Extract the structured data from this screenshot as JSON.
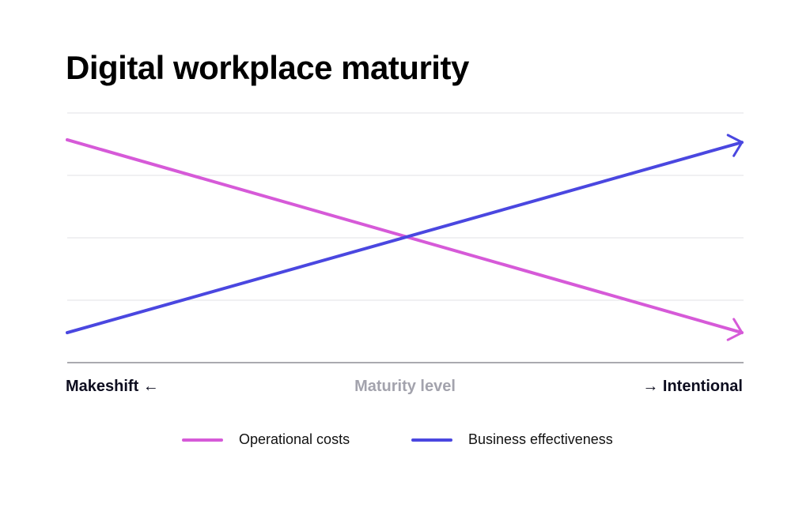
{
  "chart_data": {
    "type": "line",
    "title": "Digital workplace maturity",
    "xlabel": "Maturity level",
    "x_left_label": "Makeshift ←",
    "x_right_label": "→ Intentional",
    "x": [
      0,
      1
    ],
    "xlim": [
      0,
      1
    ],
    "ylim": [
      0,
      4
    ],
    "grid": true,
    "legend": "bottom",
    "series": [
      {
        "name": "Operational costs",
        "values": [
          3.57,
          0.48
        ],
        "color": "#d65ad8"
      },
      {
        "name": "Business effectiveness",
        "values": [
          0.48,
          3.53
        ],
        "color": "#4a47e0"
      }
    ]
  }
}
